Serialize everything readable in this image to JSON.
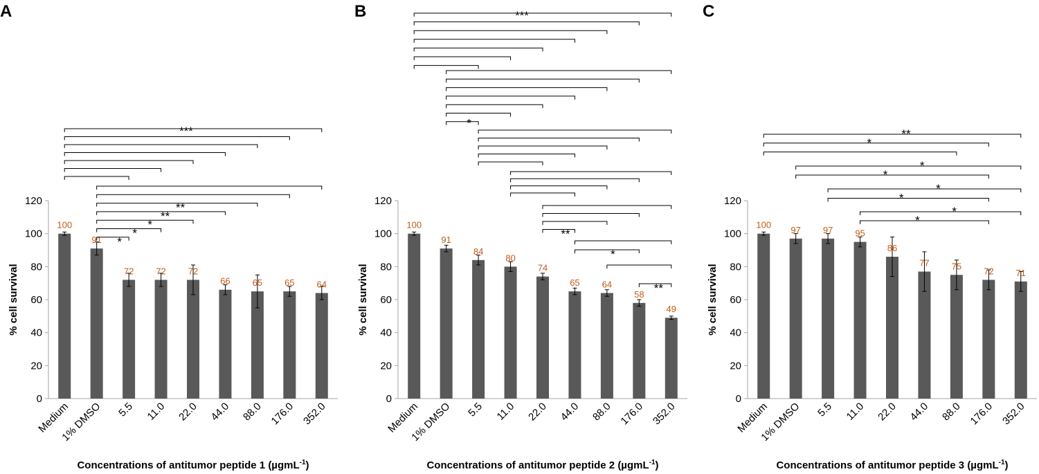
{
  "colors": {
    "bar": "#595959",
    "label": "#c55a11",
    "axis": "#a6a6a6",
    "ink": "#000000"
  },
  "chart_data": [
    {
      "type": "bar",
      "panel": "A",
      "categories": [
        "Medium",
        "1% DMSO",
        "5.5",
        "11.0",
        "22.0",
        "44.0",
        "88.0",
        "176.0",
        "352.0"
      ],
      "values": [
        100,
        91,
        72,
        72,
        72,
        66,
        65,
        65,
        64
      ],
      "errors": [
        1,
        4,
        4,
        4,
        9,
        3,
        10,
        3,
        4
      ],
      "value_labels": [
        "100",
        "91",
        "72",
        "72",
        "72",
        "66",
        "65",
        "65",
        "64"
      ],
      "ylabel": "% cell survival",
      "xlabel": "Concentrations of antitumor peptide 1 (µgmL",
      "xlabel_sup": "-1",
      "xlabel_end": ")",
      "ylim": [
        0,
        120
      ],
      "yticks": [
        "0",
        "20",
        "40",
        "60",
        "80",
        "100",
        "120"
      ],
      "comparisons": [
        {
          "from": 0,
          "targets": [
            2,
            3,
            4,
            5,
            6,
            7,
            8
          ],
          "label": "***"
        },
        {
          "from": 1,
          "targets": [
            2,
            3,
            4,
            5,
            6,
            7,
            8
          ],
          "labels": [
            "*",
            "*",
            "*",
            "**",
            "**",
            "",
            ""
          ]
        }
      ]
    },
    {
      "type": "bar",
      "panel": "B",
      "categories": [
        "Medium",
        "1% DMSO",
        "5.5",
        "11.0",
        "22.0",
        "44.0",
        "88.0",
        "176.0",
        "352.0"
      ],
      "values": [
        100,
        91,
        84,
        80,
        74,
        65,
        64,
        58,
        49
      ],
      "errors": [
        1,
        2,
        3,
        3,
        2,
        2,
        2,
        2,
        1
      ],
      "value_labels": [
        "100",
        "91",
        "84",
        "80",
        "74",
        "65",
        "64",
        "58",
        "49"
      ],
      "ylabel": "% cell survival",
      "xlabel": "Concentrations of antitumor peptide 2 (µgmL",
      "xlabel_sup": "-1",
      "xlabel_end": ")",
      "ylim": [
        0,
        120
      ],
      "yticks": [
        "0",
        "20",
        "40",
        "60",
        "80",
        "100",
        "120"
      ],
      "comparisons": [
        {
          "from": 0,
          "targets": [
            2,
            3,
            4,
            5,
            6,
            7,
            8
          ],
          "label": "***"
        },
        {
          "from": 1,
          "targets": [
            2,
            3,
            4,
            5,
            6,
            7,
            8
          ],
          "label": "*"
        },
        {
          "from": 2,
          "targets": [
            4,
            5,
            6,
            7,
            8
          ],
          "label": ""
        },
        {
          "from": 3,
          "targets": [
            5,
            6,
            7,
            8
          ],
          "label": ""
        },
        {
          "from": 4,
          "targets": [
            5,
            6,
            7,
            8
          ],
          "label": "**"
        },
        {
          "from": 5,
          "targets": [
            7,
            8
          ],
          "label": "*"
        },
        {
          "from": 6,
          "targets": [
            8
          ],
          "label": ""
        },
        {
          "from": 7,
          "targets": [
            8
          ],
          "label": "**"
        }
      ]
    },
    {
      "type": "bar",
      "panel": "C",
      "categories": [
        "Medium",
        "1% DMSO",
        "5.5",
        "11.0",
        "22.0",
        "44.0",
        "88.0",
        "176.0",
        "352.0"
      ],
      "values": [
        100,
        97,
        97,
        95,
        86,
        77,
        75,
        72,
        71
      ],
      "errors": [
        1,
        3,
        3,
        3,
        12,
        12,
        9,
        6,
        6
      ],
      "value_labels": [
        "100",
        "97",
        "97",
        "95",
        "86",
        "77",
        "75",
        "72",
        "71"
      ],
      "ylabel": "% cell survival",
      "xlabel": "Concentrations of antitumor peptide 3 (µgmL",
      "xlabel_sup": "-1",
      "xlabel_end": ")",
      "ylim": [
        0,
        120
      ],
      "yticks": [
        "0",
        "20",
        "40",
        "60",
        "80",
        "100",
        "120"
      ],
      "comparisons": [
        {
          "from": 0,
          "targets": [
            6,
            7,
            8
          ],
          "labels": [
            "",
            "*",
            "**"
          ]
        },
        {
          "from": 1,
          "targets": [
            7,
            8
          ],
          "labels": [
            "*",
            "*"
          ]
        },
        {
          "from": 2,
          "targets": [
            7,
            8
          ],
          "labels": [
            "*",
            "*"
          ]
        },
        {
          "from": 3,
          "targets": [
            7,
            8
          ],
          "labels": [
            "*",
            "*"
          ]
        }
      ]
    }
  ]
}
